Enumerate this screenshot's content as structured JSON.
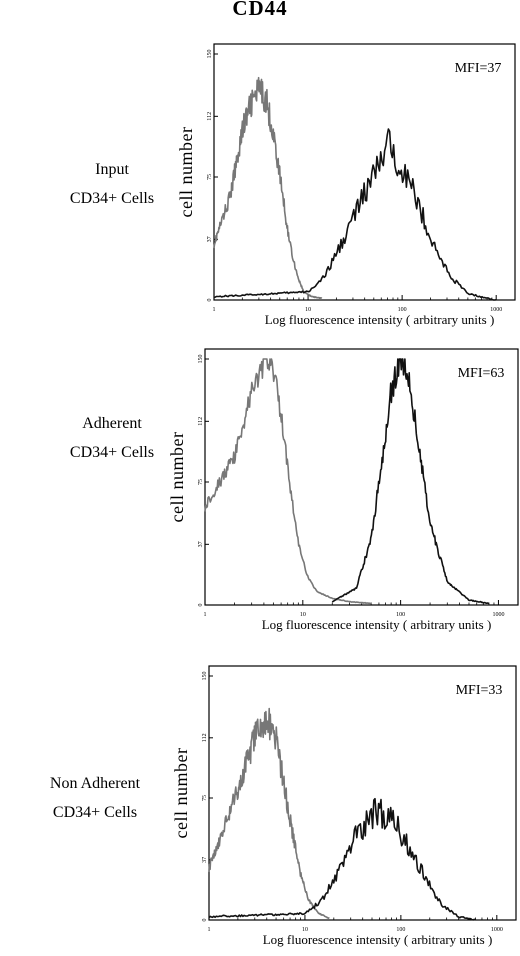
{
  "figure_title": "CD44",
  "chart_data": [
    {
      "type": "line",
      "row_label": [
        "Input",
        "CD34+ Cells"
      ],
      "xlabel": "Log fluorescence intensity ( arbitrary units )",
      "ylabel": "cell number",
      "annotation": "MFI=37",
      "x_scale": "log",
      "xlim": [
        1,
        1000
      ],
      "x_ticks": [
        "1",
        "10",
        "100",
        "1000"
      ],
      "ylim": [
        0,
        150
      ],
      "y_ticks": [
        "0",
        "37",
        "75",
        "112",
        "150"
      ],
      "series": [
        {
          "color": "#777777",
          "peak_x": 3.0,
          "peak_y": 128,
          "width": 0.19,
          "noise": 0.07,
          "points": [
            [
              1,
              34
            ],
            [
              1.5,
              64
            ],
            [
              2,
              104
            ],
            [
              2.5,
              120
            ],
            [
              3,
              128
            ],
            [
              3.6,
              122
            ],
            [
              4.3,
              100
            ],
            [
              5.2,
              70
            ],
            [
              6,
              44
            ],
            [
              7,
              24
            ],
            [
              8,
              12
            ],
            [
              9,
              5
            ],
            [
              11,
              2
            ],
            [
              14,
              1
            ]
          ]
        },
        {
          "color": "#111111",
          "peak_x": 72,
          "peak_y": 94,
          "width": 0.33,
          "noise": 0.12,
          "points": [
            [
              1,
              2
            ],
            [
              10,
              5
            ],
            [
              15,
              14
            ],
            [
              22,
              33
            ],
            [
              33,
              55
            ],
            [
              50,
              76
            ],
            [
              72,
              94
            ],
            [
              100,
              82
            ],
            [
              150,
              58
            ],
            [
              220,
              32
            ],
            [
              330,
              14
            ],
            [
              500,
              4
            ],
            [
              800,
              1
            ],
            [
              1000,
              0
            ]
          ]
        }
      ]
    },
    {
      "type": "line",
      "row_label": [
        "Adherent",
        "CD34+ Cells"
      ],
      "xlabel": "Log fluorescence intensity ( arbitrary units )",
      "ylabel": "cell number",
      "annotation": "MFI=63",
      "x_scale": "log",
      "xlim": [
        1,
        1000
      ],
      "x_ticks": [
        "1",
        "10",
        "100",
        "1000"
      ],
      "ylim": [
        0,
        150
      ],
      "y_ticks": [
        "0",
        "37",
        "75",
        "112",
        "150"
      ],
      "series": [
        {
          "color": "#777777",
          "peak_x": 4.2,
          "peak_y": 150,
          "width": 0.17,
          "noise": 0.05,
          "points": [
            [
              1,
              60
            ],
            [
              2,
              90
            ],
            [
              3,
              130
            ],
            [
              4.2,
              150
            ],
            [
              5.2,
              140
            ],
            [
              6.2,
              110
            ],
            [
              7.5,
              70
            ],
            [
              9,
              38
            ],
            [
              11,
              18
            ],
            [
              14,
              8
            ],
            [
              20,
              4
            ],
            [
              30,
              2
            ],
            [
              50,
              1
            ]
          ]
        },
        {
          "color": "#111111",
          "peak_x": 100,
          "peak_y": 150,
          "width": 0.14,
          "noise": 0.06,
          "points": [
            [
              20,
              2
            ],
            [
              35,
              10
            ],
            [
              50,
              40
            ],
            [
              65,
              90
            ],
            [
              80,
              130
            ],
            [
              100,
              150
            ],
            [
              120,
              140
            ],
            [
              150,
              100
            ],
            [
              200,
              50
            ],
            [
              300,
              14
            ],
            [
              500,
              3
            ],
            [
              800,
              1
            ]
          ]
        }
      ]
    },
    {
      "type": "line",
      "row_label": [
        "Non Adherent",
        "CD34+ Cells"
      ],
      "xlabel": "Log fluorescence intensity ( arbitrary units )",
      "ylabel": "cell number",
      "annotation": "MFI=33",
      "x_scale": "log",
      "xlim": [
        1,
        1000
      ],
      "x_ticks": [
        "1",
        "10",
        "100",
        "1000"
      ],
      "ylim": [
        0,
        150
      ],
      "y_ticks": [
        "0",
        "37",
        "75",
        "112",
        "150"
      ],
      "series": [
        {
          "color": "#777777",
          "peak_x": 4.0,
          "peak_y": 124,
          "width": 0.18,
          "noise": 0.08,
          "points": [
            [
              1,
              32
            ],
            [
              2,
              80
            ],
            [
              3,
              112
            ],
            [
              4,
              124
            ],
            [
              5,
              112
            ],
            [
              6,
              84
            ],
            [
              7.5,
              52
            ],
            [
              9,
              28
            ],
            [
              11,
              12
            ],
            [
              14,
              4
            ],
            [
              18,
              1
            ]
          ]
        },
        {
          "color": "#111111",
          "peak_x": 55,
          "peak_y": 67,
          "width": 0.36,
          "noise": 0.14,
          "points": [
            [
              1,
              2
            ],
            [
              10,
              4
            ],
            [
              15,
              12
            ],
            [
              22,
              28
            ],
            [
              33,
              50
            ],
            [
              55,
              67
            ],
            [
              80,
              62
            ],
            [
              120,
              46
            ],
            [
              180,
              26
            ],
            [
              260,
              10
            ],
            [
              400,
              2
            ],
            [
              600,
              0
            ]
          ]
        }
      ]
    }
  ]
}
